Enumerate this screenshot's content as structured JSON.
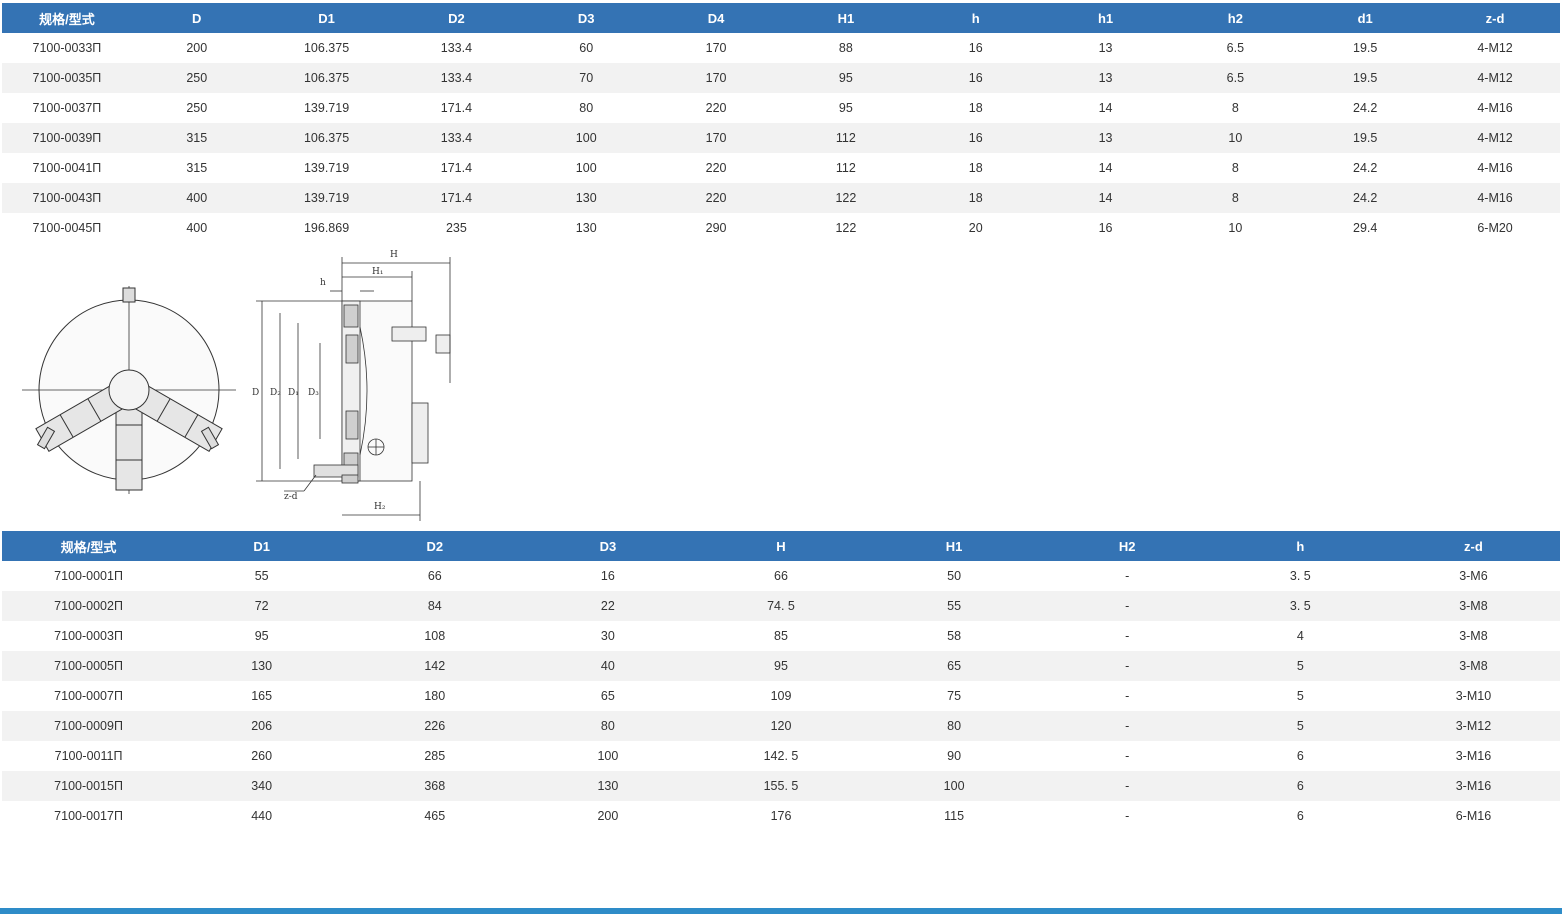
{
  "table1": {
    "headers": [
      "规格/型式",
      "D",
      "D1",
      "D2",
      "D3",
      "D4",
      "H1",
      "h",
      "h1",
      "h2",
      "d1",
      "z-d"
    ],
    "rows": [
      [
        "7100-0033П",
        "200",
        "106.375",
        "133.4",
        "60",
        "170",
        "88",
        "16",
        "13",
        "6.5",
        "19.5",
        "4-M12"
      ],
      [
        "7100-0035П",
        "250",
        "106.375",
        "133.4",
        "70",
        "170",
        "95",
        "16",
        "13",
        "6.5",
        "19.5",
        "4-M12"
      ],
      [
        "7100-0037П",
        "250",
        "139.719",
        "171.4",
        "80",
        "220",
        "95",
        "18",
        "14",
        "8",
        "24.2",
        "4-M16"
      ],
      [
        "7100-0039П",
        "315",
        "106.375",
        "133.4",
        "100",
        "170",
        "112",
        "16",
        "13",
        "10",
        "19.5",
        "4-M12"
      ],
      [
        "7100-0041П",
        "315",
        "139.719",
        "171.4",
        "100",
        "220",
        "112",
        "18",
        "14",
        "8",
        "24.2",
        "4-M16"
      ],
      [
        "7100-0043П",
        "400",
        "139.719",
        "171.4",
        "130",
        "220",
        "122",
        "18",
        "14",
        "8",
        "24.2",
        "4-M16"
      ],
      [
        "7100-0045П",
        "400",
        "196.869",
        "235",
        "130",
        "290",
        "122",
        "20",
        "16",
        "10",
        "29.4",
        "6-M20"
      ]
    ]
  },
  "drawing": {
    "labels": {
      "H": "H",
      "H1": "H₁",
      "H2": "H₂",
      "h": "h",
      "D": "D",
      "D2": "D₂",
      "D1": "D₁",
      "D3": "D₃",
      "zd": "z-d"
    }
  },
  "table2": {
    "headers": [
      "规格/型式",
      "D1",
      "D2",
      "D3",
      "H",
      "H1",
      "H2",
      "h",
      "z-d"
    ],
    "rows": [
      [
        "7100-0001П",
        "55",
        "66",
        "16",
        "66",
        "50",
        "-",
        "3.  5",
        "3-M6"
      ],
      [
        "7100-0002П",
        "72",
        "84",
        "22",
        "74.  5",
        "55",
        "-",
        "3.  5",
        "3-M8"
      ],
      [
        "7100-0003П",
        "95",
        "108",
        "30",
        "85",
        "58",
        "-",
        "4",
        "3-M8"
      ],
      [
        "7100-0005П",
        "130",
        "142",
        "40",
        "95",
        "65",
        "-",
        "5",
        "3-M8"
      ],
      [
        "7100-0007П",
        "165",
        "180",
        "65",
        "109",
        "75",
        "-",
        "5",
        "3-M10"
      ],
      [
        "7100-0009П",
        "206",
        "226",
        "80",
        "120",
        "80",
        "-",
        "5",
        "3-M12"
      ],
      [
        "7100-0011П",
        "260",
        "285",
        "100",
        "142.  5",
        "90",
        "-",
        "6",
        "3-M16"
      ],
      [
        "7100-0015П",
        "340",
        "368",
        "130",
        "155.  5",
        "100",
        "-",
        "6",
        "3-M16"
      ],
      [
        "7100-0017П",
        "440",
        "465",
        "200",
        "176",
        "115",
        "-",
        "6",
        "6-M16"
      ]
    ]
  },
  "colors": {
    "header_bg": "#3473b4",
    "row_alt": "#f2f2f2",
    "bottom_bar": "#2e8cc8"
  }
}
